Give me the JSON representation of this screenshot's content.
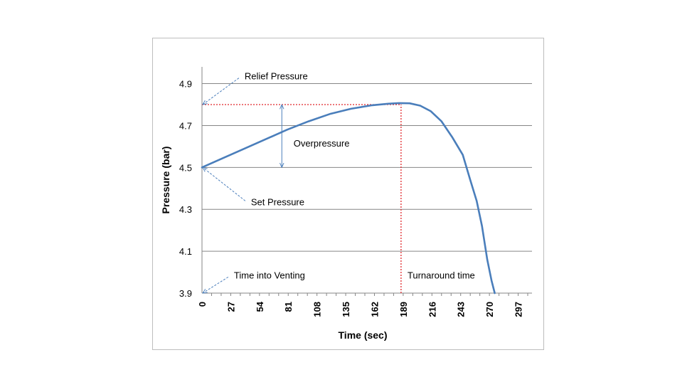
{
  "chart_data": {
    "type": "line",
    "xlabel": "Time (sec)",
    "ylabel": "Pressure (bar)",
    "xlim": [
      0,
      310
    ],
    "ylim": [
      3.9,
      4.98
    ],
    "x_ticks": [
      0,
      27,
      54,
      81,
      108,
      135,
      162,
      189,
      216,
      243,
      270,
      297
    ],
    "y_ticks": [
      3.9,
      4.1,
      4.3,
      4.5,
      4.7,
      4.9
    ],
    "grid": "horizontal",
    "colors": {
      "series": "#4a7ebb",
      "reference": "#e0262a",
      "annotation_arrow": "#4a7ebb",
      "gridline": "#868686"
    },
    "series": [
      {
        "x": [
          0,
          20,
          40,
          60,
          80,
          100,
          120,
          140,
          160,
          175,
          185,
          195,
          205,
          215,
          225,
          235,
          245,
          252,
          258,
          263,
          268,
          272,
          275
        ],
        "values": [
          4.5,
          4.545,
          4.59,
          4.635,
          4.68,
          4.72,
          4.755,
          4.78,
          4.797,
          4.804,
          4.807,
          4.806,
          4.795,
          4.768,
          4.72,
          4.645,
          4.56,
          4.44,
          4.34,
          4.22,
          4.06,
          3.96,
          3.9
        ]
      }
    ],
    "reference_lines": [
      {
        "kind": "horizontal",
        "y": 4.8,
        "x_from": 0,
        "x_to": 187
      },
      {
        "kind": "vertical",
        "x": 187,
        "y_from": 3.9,
        "y_to": 4.8
      }
    ],
    "annotations": [
      {
        "label": "Relief Pressure",
        "x": 40,
        "y": 4.92,
        "arrow_to": [
          0,
          4.8
        ]
      },
      {
        "label": "Overpressure",
        "x": 86,
        "y": 4.6,
        "double_arrow": [
          [
            75,
            4.5
          ],
          [
            75,
            4.8
          ]
        ]
      },
      {
        "label": "Set Pressure",
        "x": 46,
        "y": 4.32,
        "arrow_to": [
          0,
          4.5
        ]
      },
      {
        "label": "Time into Venting",
        "x": 30,
        "y": 3.97,
        "arrow_to": [
          0,
          3.9
        ]
      },
      {
        "label": "Turnaround time",
        "x": 193,
        "y": 3.97
      }
    ]
  }
}
